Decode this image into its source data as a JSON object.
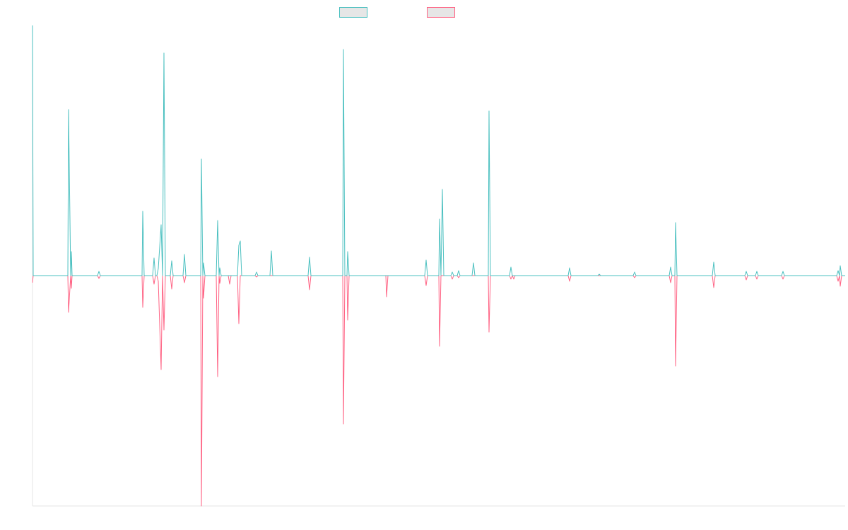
{
  "chart_data": {
    "type": "line",
    "title": "",
    "xlabel": "",
    "ylabel": "",
    "x_range": [
      0,
      1150
    ],
    "y_range": [
      -326,
      354
    ],
    "grid": false,
    "legend_position": "top-center",
    "series": [
      {
        "label": "",
        "color": "#4bc0c0",
        "points": [
          [
            0,
            354
          ],
          [
            1,
            0
          ],
          [
            50,
            0
          ],
          [
            51,
            235
          ],
          [
            54,
            0
          ],
          [
            55,
            34
          ],
          [
            56,
            0
          ],
          [
            92,
            0
          ],
          [
            94,
            6
          ],
          [
            96,
            0
          ],
          [
            155,
            0
          ],
          [
            156,
            91
          ],
          [
            158,
            0
          ],
          [
            160,
            0
          ],
          [
            163,
            0
          ],
          [
            170,
            0
          ],
          [
            172,
            25
          ],
          [
            174,
            0
          ],
          [
            176,
            0
          ],
          [
            178,
            10
          ],
          [
            182,
            72
          ],
          [
            184,
            0
          ],
          [
            186,
            315
          ],
          [
            188,
            0
          ],
          [
            195,
            0
          ],
          [
            197,
            21
          ],
          [
            199,
            0
          ],
          [
            213,
            0
          ],
          [
            215,
            30
          ],
          [
            217,
            0
          ],
          [
            238,
            0
          ],
          [
            239,
            165
          ],
          [
            241,
            0
          ],
          [
            242,
            18
          ],
          [
            244,
            0
          ],
          [
            260,
            0
          ],
          [
            262,
            78
          ],
          [
            264,
            0
          ],
          [
            265,
            11
          ],
          [
            267,
            0
          ],
          [
            290,
            0
          ],
          [
            292,
            43
          ],
          [
            294,
            49
          ],
          [
            296,
            0
          ],
          [
            315,
            0
          ],
          [
            317,
            5
          ],
          [
            319,
            0
          ],
          [
            336,
            0
          ],
          [
            338,
            35
          ],
          [
            340,
            0
          ],
          [
            390,
            0
          ],
          [
            392,
            26
          ],
          [
            394,
            0
          ],
          [
            439,
            0
          ],
          [
            440,
            320
          ],
          [
            442,
            0
          ],
          [
            445,
            0
          ],
          [
            446,
            34
          ],
          [
            448,
            0
          ],
          [
            555,
            0
          ],
          [
            557,
            22
          ],
          [
            559,
            0
          ],
          [
            575,
            0
          ],
          [
            576,
            80
          ],
          [
            578,
            0
          ],
          [
            580,
            122
          ],
          [
            582,
            0
          ],
          [
            592,
            0
          ],
          [
            594,
            5
          ],
          [
            596,
            0
          ],
          [
            601,
            0
          ],
          [
            603,
            7
          ],
          [
            605,
            0
          ],
          [
            622,
            0
          ],
          [
            624,
            18
          ],
          [
            626,
            0
          ],
          [
            645,
            0
          ],
          [
            646,
            233
          ],
          [
            648,
            0
          ],
          [
            675,
            0
          ],
          [
            677,
            12
          ],
          [
            679,
            0
          ],
          [
            758,
            0
          ],
          [
            760,
            11
          ],
          [
            762,
            0
          ],
          [
            800,
            0
          ],
          [
            802,
            2
          ],
          [
            804,
            0
          ],
          [
            850,
            0
          ],
          [
            852,
            5
          ],
          [
            854,
            0
          ],
          [
            901,
            0
          ],
          [
            903,
            12
          ],
          [
            905,
            0
          ],
          [
            909,
            0
          ],
          [
            910,
            75
          ],
          [
            912,
            0
          ],
          [
            962,
            0
          ],
          [
            964,
            19
          ],
          [
            966,
            0
          ],
          [
            1008,
            0
          ],
          [
            1010,
            6
          ],
          [
            1012,
            0
          ],
          [
            1023,
            0
          ],
          [
            1025,
            6
          ],
          [
            1027,
            0
          ],
          [
            1060,
            0
          ],
          [
            1062,
            6
          ],
          [
            1064,
            0
          ],
          [
            1138,
            0
          ],
          [
            1140,
            7
          ],
          [
            1142,
            0
          ],
          [
            1143,
            14
          ],
          [
            1145,
            0
          ],
          [
            1150,
            0
          ]
        ]
      },
      {
        "label": "",
        "color": "#ff6384",
        "points": [
          [
            0,
            -10
          ],
          [
            1,
            0
          ],
          [
            50,
            0
          ],
          [
            51,
            -52
          ],
          [
            54,
            0
          ],
          [
            55,
            -18
          ],
          [
            56,
            0
          ],
          [
            92,
            0
          ],
          [
            94,
            -4
          ],
          [
            96,
            0
          ],
          [
            155,
            0
          ],
          [
            156,
            -45
          ],
          [
            158,
            0
          ],
          [
            160,
            0
          ],
          [
            163,
            0
          ],
          [
            170,
            0
          ],
          [
            172,
            -12
          ],
          [
            174,
            0
          ],
          [
            176,
            0
          ],
          [
            178,
            -8
          ],
          [
            182,
            -133
          ],
          [
            184,
            0
          ],
          [
            186,
            -77
          ],
          [
            188,
            0
          ],
          [
            195,
            0
          ],
          [
            197,
            -19
          ],
          [
            199,
            0
          ],
          [
            213,
            0
          ],
          [
            215,
            -10
          ],
          [
            217,
            0
          ],
          [
            238,
            0
          ],
          [
            239,
            -326
          ],
          [
            241,
            0
          ],
          [
            242,
            -32
          ],
          [
            244,
            0
          ],
          [
            260,
            0
          ],
          [
            262,
            -143
          ],
          [
            264,
            0
          ],
          [
            265,
            -11
          ],
          [
            267,
            0
          ],
          [
            277,
            0
          ],
          [
            279,
            -12
          ],
          [
            281,
            0
          ],
          [
            290,
            0
          ],
          [
            292,
            -68
          ],
          [
            294,
            0
          ],
          [
            315,
            0
          ],
          [
            317,
            -2
          ],
          [
            319,
            0
          ],
          [
            390,
            0
          ],
          [
            392,
            -20
          ],
          [
            394,
            0
          ],
          [
            439,
            0
          ],
          [
            440,
            -210
          ],
          [
            442,
            0
          ],
          [
            445,
            0
          ],
          [
            446,
            -63
          ],
          [
            448,
            0
          ],
          [
            500,
            0
          ],
          [
            501,
            -30
          ],
          [
            503,
            0
          ],
          [
            555,
            0
          ],
          [
            557,
            -14
          ],
          [
            559,
            0
          ],
          [
            575,
            0
          ],
          [
            576,
            -100
          ],
          [
            578,
            0
          ],
          [
            592,
            0
          ],
          [
            594,
            -5
          ],
          [
            596,
            0
          ],
          [
            601,
            0
          ],
          [
            603,
            -3
          ],
          [
            605,
            0
          ],
          [
            645,
            0
          ],
          [
            646,
            -80
          ],
          [
            648,
            0
          ],
          [
            675,
            0
          ],
          [
            677,
            -5
          ],
          [
            679,
            0
          ],
          [
            681,
            -5
          ],
          [
            683,
            0
          ],
          [
            758,
            0
          ],
          [
            760,
            -8
          ],
          [
            762,
            0
          ],
          [
            850,
            0
          ],
          [
            852,
            -3
          ],
          [
            854,
            0
          ],
          [
            901,
            0
          ],
          [
            903,
            -10
          ],
          [
            905,
            0
          ],
          [
            909,
            0
          ],
          [
            910,
            -128
          ],
          [
            912,
            0
          ],
          [
            962,
            0
          ],
          [
            964,
            -17
          ],
          [
            966,
            0
          ],
          [
            1008,
            0
          ],
          [
            1010,
            -6
          ],
          [
            1012,
            0
          ],
          [
            1023,
            0
          ],
          [
            1025,
            -5
          ],
          [
            1027,
            0
          ],
          [
            1060,
            0
          ],
          [
            1062,
            -5
          ],
          [
            1064,
            0
          ],
          [
            1138,
            0
          ],
          [
            1140,
            -8
          ],
          [
            1142,
            0
          ],
          [
            1143,
            -15
          ],
          [
            1145,
            0
          ],
          [
            1150,
            0
          ]
        ]
      }
    ]
  }
}
